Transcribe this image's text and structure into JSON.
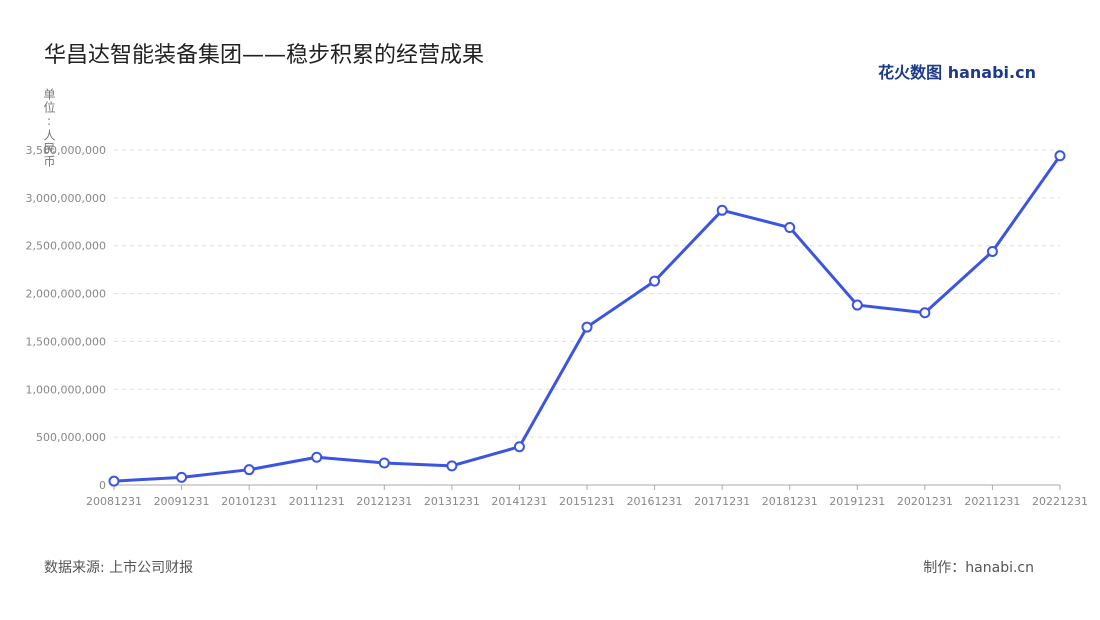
{
  "chart_data": {
    "type": "line",
    "title": "华昌达智能装备集团——稳步积累的经营成果",
    "y_label": "单位:人民币",
    "logo": "花火数图 hanabi.cn",
    "source": "数据来源: 上市公司财报",
    "credit": "制作：hanabi.cn",
    "categories": [
      "20081231",
      "20091231",
      "20101231",
      "20111231",
      "20121231",
      "20131231",
      "20141231",
      "20151231",
      "20161231",
      "20171231",
      "20181231",
      "20191231",
      "20201231",
      "20211231",
      "20221231"
    ],
    "series": [
      {
        "color": "#3b55e0",
        "values": [
          40000000,
          80000000,
          160000000,
          290000000,
          230000000,
          200000000,
          400000000,
          1650000000,
          2130000000,
          2870000000,
          2690000000,
          1880000000,
          1800000000,
          2440000000,
          3440000000
        ]
      }
    ],
    "ylim": [
      0,
      3500000000
    ],
    "yticks": [
      0,
      {
        "value": 500000000,
        "label": "500,000,000"
      },
      {
        "value": 1000000000,
        "label": "1,000,000,000"
      },
      {
        "value": 1500000000,
        "label": "1,500,000,000"
      },
      {
        "value": 2000000000,
        "label": "2,000,000,000"
      },
      {
        "value": 2500000000,
        "label": "2,500,000,000"
      },
      {
        "value": 3000000000,
        "label": "3,000,000,000"
      },
      {
        "value": 3500000000,
        "label": "3,500,000,000"
      }
    ],
    "grid": true
  }
}
